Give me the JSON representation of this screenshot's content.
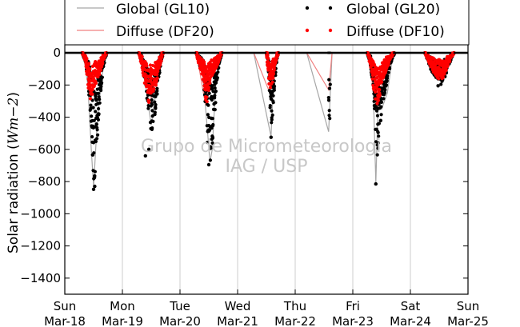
{
  "chart_data": {
    "type": "scatter",
    "ylabel": "Solar radiation (Wm−2)",
    "ylabel_parts": {
      "prefix": "Solar radiation (",
      "math": "Wm−2",
      "suffix": ")"
    },
    "ylim": [
      -1500,
      50
    ],
    "yticks": [
      0,
      -200,
      -400,
      -600,
      -800,
      -1000,
      -1200,
      -1400
    ],
    "xlim": [
      0,
      7
    ],
    "xticks": [
      {
        "x": 0,
        "day": "Sun",
        "date": "Mar-18"
      },
      {
        "x": 1,
        "day": "Mon",
        "date": "Mar-19"
      },
      {
        "x": 2,
        "day": "Tue",
        "date": "Mar-20"
      },
      {
        "x": 3,
        "day": "Wed",
        "date": "Mar-21"
      },
      {
        "x": 4,
        "day": "Thu",
        "date": "Mar-22"
      },
      {
        "x": 5,
        "day": "Fri",
        "date": "Mar-23"
      },
      {
        "x": 6,
        "day": "Sat",
        "date": "Mar-24"
      },
      {
        "x": 7,
        "day": "Sun",
        "date": "Mar-25"
      }
    ],
    "grid": "vertical",
    "legend_placement": "top",
    "watermark": [
      "Grupo de Micrometeorologia",
      "IAG / USP"
    ],
    "colors": {
      "global": "#000000",
      "diffuse": "#ff0000",
      "global_line": "#a6a6a6",
      "diffuse_line": "#f08080"
    },
    "series": [
      {
        "name": "Global (GL10)",
        "style": "line",
        "color": "#a6a6a6",
        "points": [
          [
            0,
            0
          ],
          [
            0.32,
            0
          ],
          [
            0.4,
            -200
          ],
          [
            0.46,
            -600
          ],
          [
            0.5,
            -830
          ],
          [
            0.56,
            -450
          ],
          [
            0.64,
            -150
          ],
          [
            0.72,
            -10
          ],
          [
            0.78,
            0
          ],
          [
            1.3,
            0
          ],
          [
            1.4,
            -200
          ],
          [
            1.5,
            -450
          ],
          [
            1.56,
            -300
          ],
          [
            1.62,
            -150
          ],
          [
            1.7,
            0
          ],
          [
            2.28,
            0
          ],
          [
            2.4,
            -150
          ],
          [
            2.48,
            -500
          ],
          [
            2.52,
            -680
          ],
          [
            2.56,
            -600
          ],
          [
            2.62,
            -200
          ],
          [
            2.7,
            0
          ],
          [
            3.28,
            0
          ],
          [
            3.58,
            -520
          ],
          [
            3.62,
            -200
          ],
          [
            3.7,
            0
          ],
          [
            4.2,
            0
          ],
          [
            4.58,
            -490
          ],
          [
            4.64,
            0
          ],
          [
            5.25,
            0
          ],
          [
            5.35,
            -160
          ],
          [
            5.4,
            -810
          ],
          [
            5.44,
            -300
          ],
          [
            5.5,
            -350
          ],
          [
            5.6,
            -250
          ],
          [
            5.7,
            0
          ],
          [
            6.25,
            0
          ],
          [
            6.35,
            -80
          ],
          [
            6.45,
            -120
          ],
          [
            6.55,
            -160
          ],
          [
            6.65,
            -80
          ],
          [
            6.75,
            0
          ],
          [
            7,
            0
          ]
        ]
      },
      {
        "name": "Diffuse (DF20)",
        "style": "line",
        "color": "#f08080",
        "points": [
          [
            0,
            0
          ],
          [
            0.3,
            0
          ],
          [
            0.4,
            -150
          ],
          [
            0.46,
            -280
          ],
          [
            0.52,
            -200
          ],
          [
            0.6,
            -150
          ],
          [
            0.68,
            -20
          ],
          [
            0.75,
            0
          ],
          [
            1.3,
            0
          ],
          [
            1.42,
            -180
          ],
          [
            1.5,
            -280
          ],
          [
            1.58,
            -180
          ],
          [
            1.68,
            0
          ],
          [
            2.28,
            0
          ],
          [
            2.36,
            -150
          ],
          [
            2.44,
            -320
          ],
          [
            2.52,
            -150
          ],
          [
            2.6,
            -100
          ],
          [
            2.68,
            -20
          ],
          [
            2.72,
            0
          ],
          [
            3.28,
            0
          ],
          [
            3.55,
            -240
          ],
          [
            3.62,
            -140
          ],
          [
            3.7,
            0
          ],
          [
            4.2,
            0
          ],
          [
            4.58,
            -230
          ],
          [
            4.64,
            0
          ],
          [
            5.25,
            0
          ],
          [
            5.38,
            -280
          ],
          [
            5.44,
            -330
          ],
          [
            5.5,
            -200
          ],
          [
            5.6,
            -100
          ],
          [
            5.7,
            0
          ],
          [
            6.25,
            0
          ],
          [
            6.4,
            -100
          ],
          [
            6.5,
            -130
          ],
          [
            6.6,
            -80
          ],
          [
            6.72,
            0
          ],
          [
            7,
            0
          ]
        ]
      },
      {
        "name": "Global (GL20)",
        "style": "points",
        "color": "#000000",
        "days": [
          {
            "t0": 0.3,
            "t1": 0.72,
            "env": [
              [
                0.3,
                0
              ],
              [
                0.36,
                -60
              ],
              [
                0.4,
                -180
              ],
              [
                0.44,
                -380
              ],
              [
                0.48,
                -650
              ],
              [
                0.51,
                -840
              ],
              [
                0.54,
                -700
              ],
              [
                0.58,
                -450
              ],
              [
                0.62,
                -260
              ],
              [
                0.67,
                -80
              ],
              [
                0.72,
                0
              ]
            ]
          },
          {
            "t0": 1.28,
            "t1": 1.7,
            "env": [
              [
                1.28,
                0
              ],
              [
                1.34,
                -70
              ],
              [
                1.4,
                -220
              ],
              [
                1.46,
                -380
              ],
              [
                1.5,
                -520
              ],
              [
                1.54,
                -440
              ],
              [
                1.58,
                -350
              ],
              [
                1.62,
                -200
              ],
              [
                1.66,
                -70
              ],
              [
                1.7,
                0
              ]
            ]
          },
          {
            "t0": 2.28,
            "t1": 2.72,
            "env": [
              [
                2.28,
                0
              ],
              [
                2.34,
                -80
              ],
              [
                2.4,
                -150
              ],
              [
                2.44,
                -330
              ],
              [
                2.48,
                -580
              ],
              [
                2.52,
                -690
              ],
              [
                2.56,
                -640
              ],
              [
                2.6,
                -380
              ],
              [
                2.64,
                -180
              ],
              [
                2.68,
                -60
              ],
              [
                2.72,
                0
              ]
            ]
          },
          {
            "t0": 3.5,
            "t1": 3.7,
            "env": [
              [
                3.5,
                0
              ],
              [
                3.55,
                -200
              ],
              [
                3.58,
                -520
              ],
              [
                3.62,
                -330
              ],
              [
                3.66,
                -100
              ],
              [
                3.7,
                0
              ]
            ]
          },
          {
            "t0": 4.58,
            "t1": 4.6,
            "env": [
              [
                4.58,
                -490
              ],
              [
                4.6,
                -490
              ]
            ]
          },
          {
            "t0": 5.25,
            "t1": 5.72,
            "env": [
              [
                5.25,
                0
              ],
              [
                5.3,
                -70
              ],
              [
                5.34,
                -180
              ],
              [
                5.38,
                -380
              ],
              [
                5.42,
                -700
              ],
              [
                5.46,
                -550
              ],
              [
                5.5,
                -380
              ],
              [
                5.56,
                -260
              ],
              [
                5.62,
                -130
              ],
              [
                5.68,
                -40
              ],
              [
                5.72,
                0
              ]
            ]
          },
          {
            "t0": 6.25,
            "t1": 6.75,
            "env": [
              [
                6.25,
                0
              ],
              [
                6.3,
                -50
              ],
              [
                6.36,
                -110
              ],
              [
                6.42,
                -160
              ],
              [
                6.48,
                -180
              ],
              [
                6.54,
                -200
              ],
              [
                6.6,
                -160
              ],
              [
                6.66,
                -90
              ],
              [
                6.7,
                -40
              ],
              [
                6.75,
                0
              ]
            ]
          }
        ],
        "extra": [
          [
            0.5,
            -848
          ],
          [
            0.52,
            -830
          ],
          [
            1.4,
            -640
          ],
          [
            1.46,
            -600
          ],
          [
            2.5,
            -695
          ],
          [
            3.58,
            -525
          ],
          [
            5.4,
            -815
          ],
          [
            6.48,
            -205
          ]
        ]
      },
      {
        "name": "Diffuse (DF10)",
        "style": "points",
        "color": "#ff0000",
        "days": [
          {
            "t0": 0.3,
            "t1": 0.72,
            "env": [
              [
                0.3,
                0
              ],
              [
                0.36,
                -60
              ],
              [
                0.4,
                -200
              ],
              [
                0.45,
                -320
              ],
              [
                0.5,
                -260
              ],
              [
                0.55,
                -180
              ],
              [
                0.6,
                -150
              ],
              [
                0.66,
                -60
              ],
              [
                0.72,
                0
              ]
            ]
          },
          {
            "t0": 1.28,
            "t1": 1.7,
            "env": [
              [
                1.28,
                0
              ],
              [
                1.34,
                -90
              ],
              [
                1.4,
                -220
              ],
              [
                1.45,
                -310
              ],
              [
                1.5,
                -300
              ],
              [
                1.56,
                -250
              ],
              [
                1.62,
                -130
              ],
              [
                1.7,
                0
              ]
            ]
          },
          {
            "t0": 2.28,
            "t1": 2.72,
            "env": [
              [
                2.28,
                0
              ],
              [
                2.34,
                -100
              ],
              [
                2.4,
                -170
              ],
              [
                2.46,
                -330
              ],
              [
                2.52,
                -180
              ],
              [
                2.58,
                -130
              ],
              [
                2.64,
                -90
              ],
              [
                2.7,
                -20
              ],
              [
                2.72,
                0
              ]
            ]
          },
          {
            "t0": 3.5,
            "t1": 3.7,
            "env": [
              [
                3.5,
                0
              ],
              [
                3.55,
                -230
              ],
              [
                3.6,
                -200
              ],
              [
                3.65,
                -80
              ],
              [
                3.7,
                0
              ]
            ]
          },
          {
            "t0": 5.25,
            "t1": 5.7,
            "env": [
              [
                5.25,
                0
              ],
              [
                5.32,
                -100
              ],
              [
                5.38,
                -300
              ],
              [
                5.43,
                -350
              ],
              [
                5.48,
                -250
              ],
              [
                5.55,
                -140
              ],
              [
                5.62,
                -70
              ],
              [
                5.7,
                0
              ]
            ]
          },
          {
            "t0": 6.25,
            "t1": 6.75,
            "env": [
              [
                6.25,
                0
              ],
              [
                6.32,
                -60
              ],
              [
                6.4,
                -120
              ],
              [
                6.48,
                -160
              ],
              [
                6.55,
                -170
              ],
              [
                6.62,
                -110
              ],
              [
                6.7,
                -40
              ],
              [
                6.75,
                0
              ]
            ]
          }
        ],
        "extra": []
      }
    ]
  }
}
